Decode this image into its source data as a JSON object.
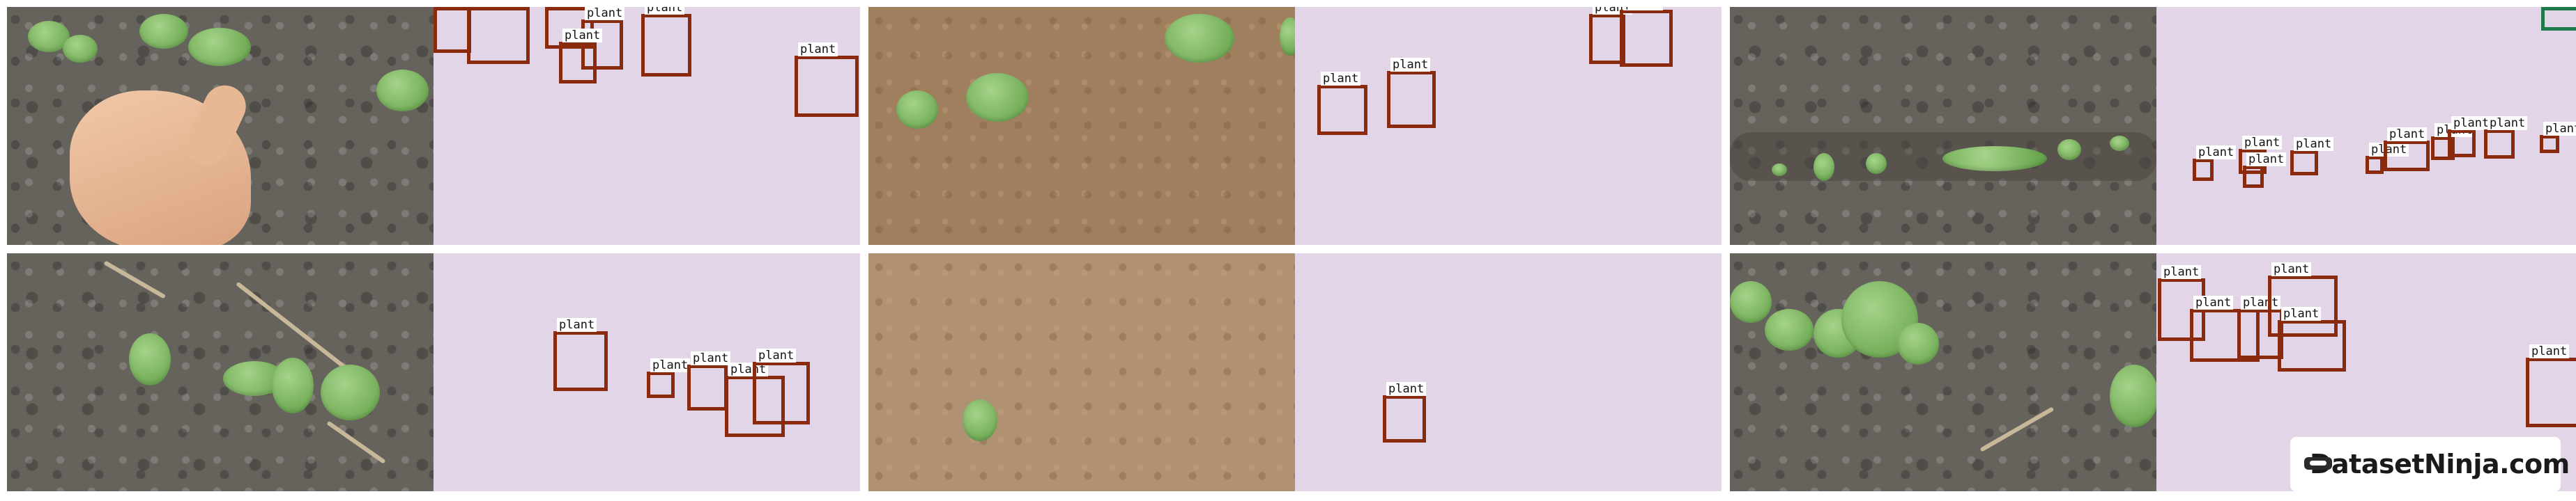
{
  "annotation_label": "plant",
  "watermark": {
    "text": "DatasetNinja.com",
    "logo_icon": "ninja-logo-icon"
  },
  "colors": {
    "mask_background": "#e1d5e7",
    "box_border": "#8a2a0f",
    "box_border_alt": "#1f7a4a"
  },
  "tile_count": 12
}
